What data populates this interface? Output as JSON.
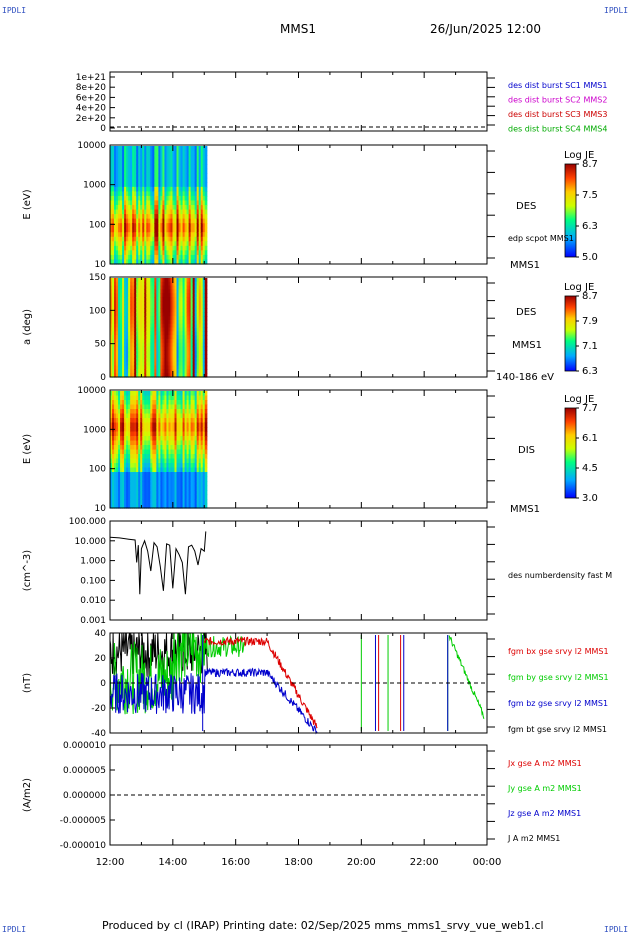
{
  "corner_labels": {
    "top_left": "IPDLI",
    "top_right": "IPDLI",
    "bottom_left": "IPDLI",
    "bottom_right": "IPDLI"
  },
  "header": {
    "spacecraft": "MMS1",
    "datetime": "26/Jun/2025 12:00"
  },
  "footer": {
    "text": "Produced by cl (IRAP)   Printing date: 02/Sep/2025   mms_mms1_srvy_vue_web1.cl"
  },
  "chart_data": [
    {
      "type": "line",
      "panel": "des_dist",
      "ylabel": "",
      "yticks": [
        "1e+21",
        "8e+20",
        "6e+20",
        "4e+20",
        "2e+20",
        "0"
      ],
      "ylim": [
        0,
        1.1e+21
      ],
      "series": [
        {
          "name": "des dist burst SC1 MMS1",
          "color": "#0000cc",
          "values": []
        },
        {
          "name": "des dist burst SC2 MMS2",
          "color": "#cc00cc",
          "values": []
        },
        {
          "name": "des dist burst SC3 MMS3",
          "color": "#cc0000",
          "values": []
        },
        {
          "name": "des dist burst SC4 MMS4",
          "color": "#00aa00",
          "values": []
        }
      ]
    },
    {
      "type": "heatmap",
      "panel": "des_energy",
      "ylabel": "E (eV)",
      "yticks": [
        "10000",
        "1000",
        "100",
        "10"
      ],
      "scale": "log",
      "labels": [
        "DES",
        "edp scpot MMS1",
        "MMS1"
      ],
      "colorbar": {
        "title": "Log JE",
        "ticks": [
          "8.7",
          "7.5",
          "6.3",
          "5.0"
        ]
      },
      "x_range": [
        "12:00",
        "15:05"
      ]
    },
    {
      "type": "heatmap",
      "panel": "des_pitch",
      "ylabel": "a (deg)",
      "yticks": [
        "150",
        "100",
        "50",
        "0"
      ],
      "labels": [
        "DES",
        "MMS1",
        "140-186 eV"
      ],
      "colorbar": {
        "title": "Log JE",
        "ticks": [
          "8.7",
          "7.9",
          "7.1",
          "6.3"
        ]
      },
      "x_range": [
        "12:00",
        "15:05"
      ]
    },
    {
      "type": "heatmap",
      "panel": "dis_energy",
      "ylabel": "E (eV)",
      "yticks": [
        "10000",
        "1000",
        "100",
        "10"
      ],
      "scale": "log",
      "labels": [
        "DIS",
        "MMS1"
      ],
      "colorbar": {
        "title": "Log JE",
        "ticks": [
          "7.7",
          "6.1",
          "4.5",
          "3.0"
        ]
      },
      "x_range": [
        "12:00",
        "15:05"
      ]
    },
    {
      "type": "line",
      "panel": "density",
      "ylabel": "(cm^-3)",
      "yticks": [
        "100.000",
        "10.000",
        "1.000",
        "0.100",
        "0.010",
        "0.001"
      ],
      "scale": "log",
      "series": [
        {
          "name": "des numberdensity fast M",
          "color": "#000000",
          "x": [
            12.0,
            12.3,
            12.6,
            12.8,
            12.85,
            12.9,
            12.95,
            13.0,
            13.1,
            13.2,
            13.3,
            13.4,
            13.5,
            13.6,
            13.7,
            13.8,
            13.9,
            14.0,
            14.1,
            14.2,
            14.3,
            14.4,
            14.5,
            14.6,
            14.7,
            14.8,
            14.9,
            15.0,
            15.05
          ],
          "values": [
            15,
            14,
            12,
            11,
            0.8,
            6,
            0.02,
            4,
            10,
            3,
            0.3,
            8,
            5,
            0.5,
            0.03,
            7,
            6,
            0.04,
            4,
            2,
            0.8,
            0.02,
            5,
            6,
            3,
            0.6,
            4,
            3,
            30
          ]
        }
      ]
    },
    {
      "type": "line",
      "panel": "fgm",
      "ylabel": "(nT)",
      "yticks": [
        "40",
        "20",
        "0",
        "-20",
        "-40"
      ],
      "ylim": [
        -48,
        48
      ],
      "series": [
        {
          "name": "fgm bx gse srvy l2 MMS1",
          "color": "#dd0000"
        },
        {
          "name": "fgm by gse srvy l2 MMS1",
          "color": "#00cc00"
        },
        {
          "name": "fgm bz gse srvy l2 MMS1",
          "color": "#0000cc"
        },
        {
          "name": "fgm bt gse srvy l2 MMS1",
          "color": "#000000"
        }
      ]
    },
    {
      "type": "line",
      "panel": "current",
      "ylabel": "(A/m2)",
      "yticks": [
        "0.000010",
        "0.000005",
        "0.000000",
        "-0.000005",
        "-0.000010"
      ],
      "ylim": [
        -1e-05,
        1e-05
      ],
      "series": [
        {
          "name": "Jx gse A m2 MMS1",
          "color": "#dd0000",
          "values": []
        },
        {
          "name": "Jy gse A m2 MMS1",
          "color": "#00cc00",
          "values": []
        },
        {
          "name": "Jz gse A m2 MMS1",
          "color": "#0000cc",
          "values": []
        },
        {
          "name": "J A m2 MMS1",
          "color": "#000000",
          "values": []
        }
      ]
    }
  ],
  "xaxis": {
    "ticks": [
      "12:00",
      "14:00",
      "16:00",
      "18:00",
      "20:00",
      "22:00",
      "00:00"
    ],
    "range_hours": [
      12,
      24
    ]
  }
}
